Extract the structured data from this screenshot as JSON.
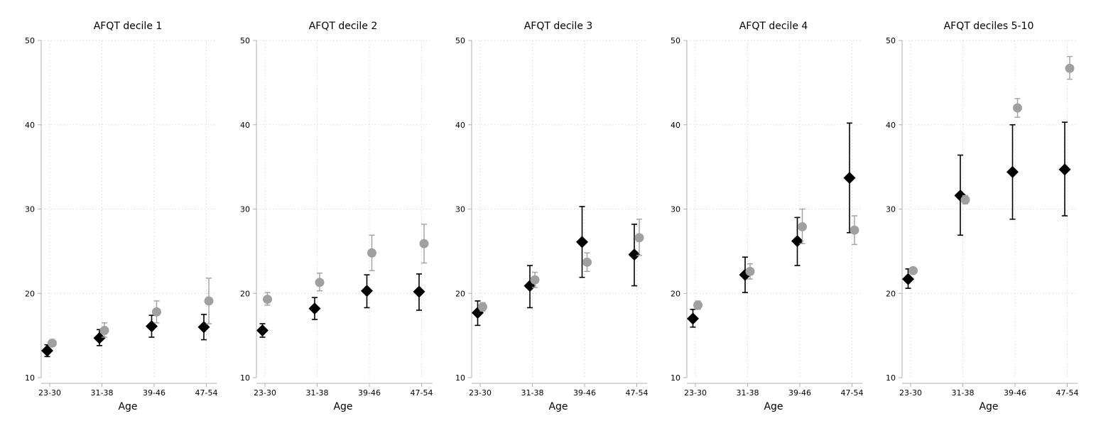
{
  "colors": {
    "series_a": "#000000",
    "series_b": "#a0a0a0",
    "grid": "#d9d9d9",
    "axis": "#b0b0b0"
  },
  "chart_data": [
    {
      "type": "scatter",
      "title": "AFQT decile 1",
      "xlabel": "Age",
      "categories": [
        "23-30",
        "31-38",
        "39-46",
        "47-54"
      ],
      "ylim": [
        10,
        50
      ],
      "yticks": [
        10,
        20,
        30,
        40,
        50
      ],
      "grid": true,
      "series": [
        {
          "marker": "diamond",
          "values": [
            13.2,
            14.7,
            16.1,
            16.0
          ],
          "ci_low": [
            12.5,
            13.8,
            14.8,
            14.5
          ],
          "ci_high": [
            13.9,
            15.7,
            17.4,
            17.5
          ]
        },
        {
          "marker": "circle",
          "values": [
            14.1,
            15.6,
            17.8,
            19.1
          ],
          "ci_low": [
            13.7,
            14.8,
            16.5,
            16.4
          ],
          "ci_high": [
            14.5,
            16.5,
            19.1,
            21.8
          ]
        }
      ]
    },
    {
      "type": "scatter",
      "title": "AFQT decile 2",
      "xlabel": "Age",
      "categories": [
        "23-30",
        "31-38",
        "39-46",
        "47-54"
      ],
      "ylim": [
        10,
        50
      ],
      "yticks": [
        10,
        20,
        30,
        40,
        50
      ],
      "grid": true,
      "series": [
        {
          "marker": "diamond",
          "values": [
            15.6,
            18.2,
            20.3,
            20.2
          ],
          "ci_low": [
            14.8,
            16.9,
            18.3,
            18.0
          ],
          "ci_high": [
            16.4,
            19.5,
            22.2,
            22.3
          ]
        },
        {
          "marker": "circle",
          "values": [
            19.3,
            21.3,
            24.8,
            25.9
          ],
          "ci_low": [
            18.6,
            20.3,
            22.7,
            23.6
          ],
          "ci_high": [
            20.1,
            22.4,
            26.9,
            28.2
          ]
        }
      ]
    },
    {
      "type": "scatter",
      "title": "AFQT decile 3",
      "xlabel": "Age",
      "categories": [
        "23-30",
        "31-38",
        "39-46",
        "47-54"
      ],
      "ylim": [
        10,
        50
      ],
      "yticks": [
        10,
        20,
        30,
        40,
        50
      ],
      "grid": true,
      "series": [
        {
          "marker": "diamond",
          "values": [
            17.7,
            20.9,
            26.1,
            24.6
          ],
          "ci_low": [
            16.2,
            18.3,
            21.9,
            20.9
          ],
          "ci_high": [
            19.1,
            23.3,
            30.3,
            28.2
          ]
        },
        {
          "marker": "circle",
          "values": [
            18.4,
            21.6,
            23.7,
            26.6
          ],
          "ci_low": [
            17.9,
            20.7,
            22.6,
            24.5
          ],
          "ci_high": [
            18.9,
            22.5,
            24.8,
            28.8
          ]
        }
      ]
    },
    {
      "type": "scatter",
      "title": "AFQT decile 4",
      "xlabel": "Age",
      "categories": [
        "23-30",
        "31-38",
        "39-46",
        "47-54"
      ],
      "ylim": [
        10,
        50
      ],
      "yticks": [
        10,
        20,
        30,
        40,
        50
      ],
      "grid": true,
      "series": [
        {
          "marker": "diamond",
          "values": [
            17.0,
            22.2,
            26.2,
            33.7
          ],
          "ci_low": [
            16.0,
            20.1,
            23.3,
            27.2
          ],
          "ci_high": [
            18.1,
            24.3,
            29.0,
            40.2
          ]
        },
        {
          "marker": "circle",
          "values": [
            18.6,
            22.6,
            27.9,
            27.5
          ],
          "ci_low": [
            18.1,
            21.7,
            25.9,
            25.8
          ],
          "ci_high": [
            19.1,
            23.5,
            30.0,
            29.2
          ]
        }
      ]
    },
    {
      "type": "scatter",
      "title": "AFQT deciles 5-10",
      "xlabel": "Age",
      "categories": [
        "23-30",
        "31-38",
        "39-46",
        "47-54"
      ],
      "ylim": [
        10,
        50
      ],
      "yticks": [
        10,
        20,
        30,
        40,
        50
      ],
      "grid": true,
      "series": [
        {
          "marker": "diamond",
          "values": [
            21.7,
            31.6,
            34.4,
            34.7
          ],
          "ci_low": [
            20.6,
            26.9,
            28.8,
            29.2
          ],
          "ci_high": [
            22.9,
            36.4,
            40.0,
            40.3
          ]
        },
        {
          "marker": "circle",
          "values": [
            22.7,
            31.1,
            42.0,
            46.7
          ],
          "ci_low": [
            22.4,
            30.6,
            40.9,
            45.4
          ],
          "ci_high": [
            23.0,
            31.6,
            43.1,
            48.1
          ]
        }
      ]
    }
  ]
}
